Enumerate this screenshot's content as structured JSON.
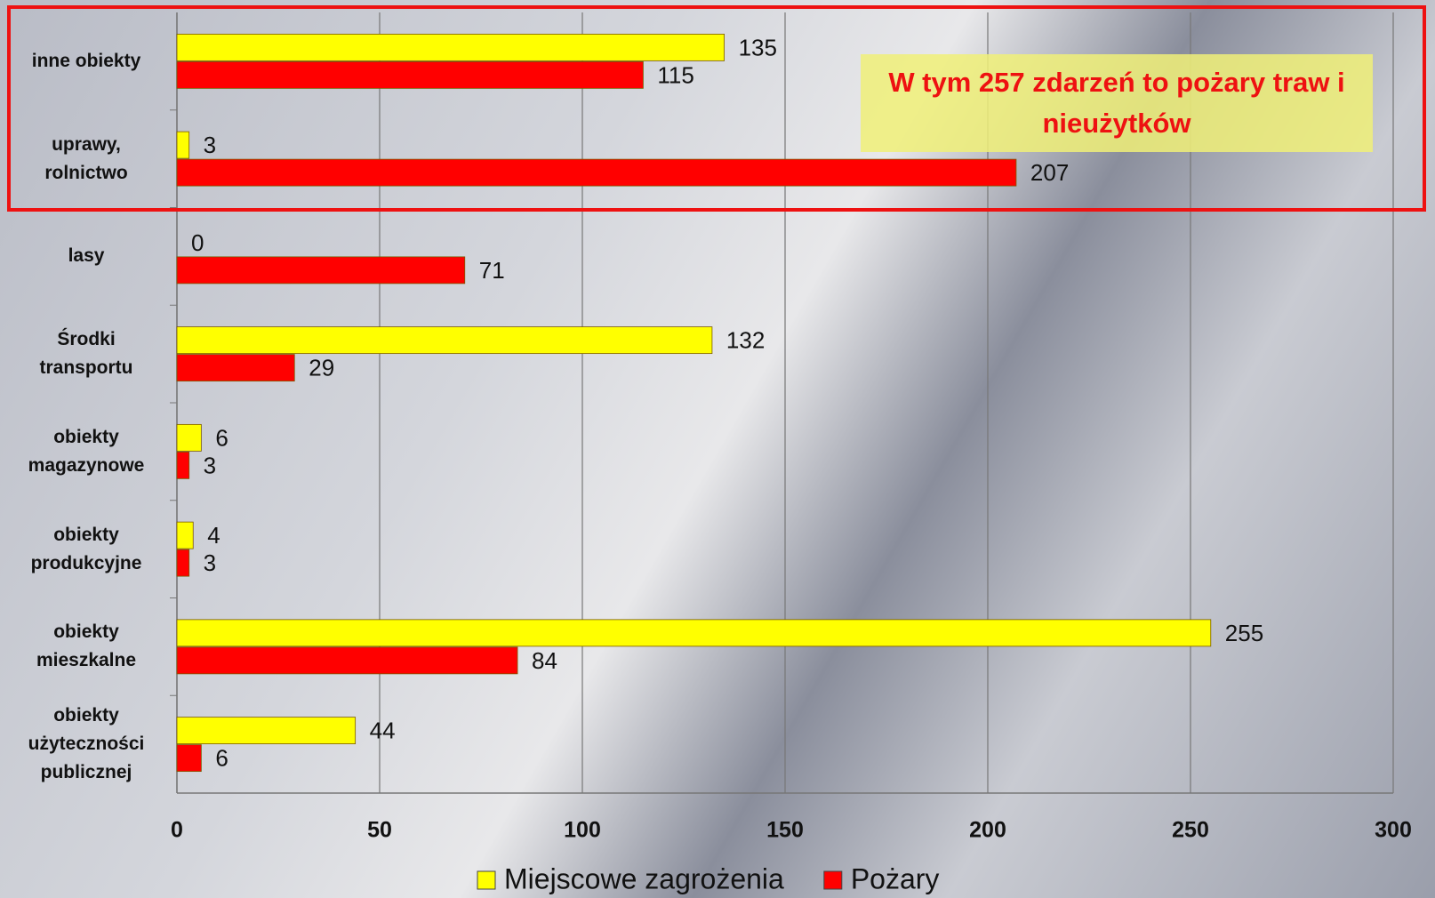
{
  "chart_data": {
    "type": "bar",
    "orientation": "horizontal",
    "categories": [
      "inne obiekty",
      "uprawy, rolnictwo",
      "lasy",
      "Środki transportu",
      "obiekty magazynowe",
      "obiekty produkcyjne",
      "obiekty mieszkalne",
      "obiekty użyteczności publicznej"
    ],
    "series": [
      {
        "name": "Miejscowe zagrożenia",
        "color": "#ffff00",
        "values": [
          135,
          3,
          0,
          132,
          6,
          4,
          255,
          44
        ]
      },
      {
        "name": "Pożary",
        "color": "#ff0000",
        "values": [
          115,
          207,
          71,
          29,
          3,
          3,
          84,
          6
        ]
      }
    ],
    "xlim": [
      0,
      300
    ],
    "xticks": [
      0,
      50,
      100,
      150,
      200,
      250,
      300
    ],
    "grid": true,
    "annotation": "W tym 257 zdarzeń to pożary traw i nieużytków"
  }
}
